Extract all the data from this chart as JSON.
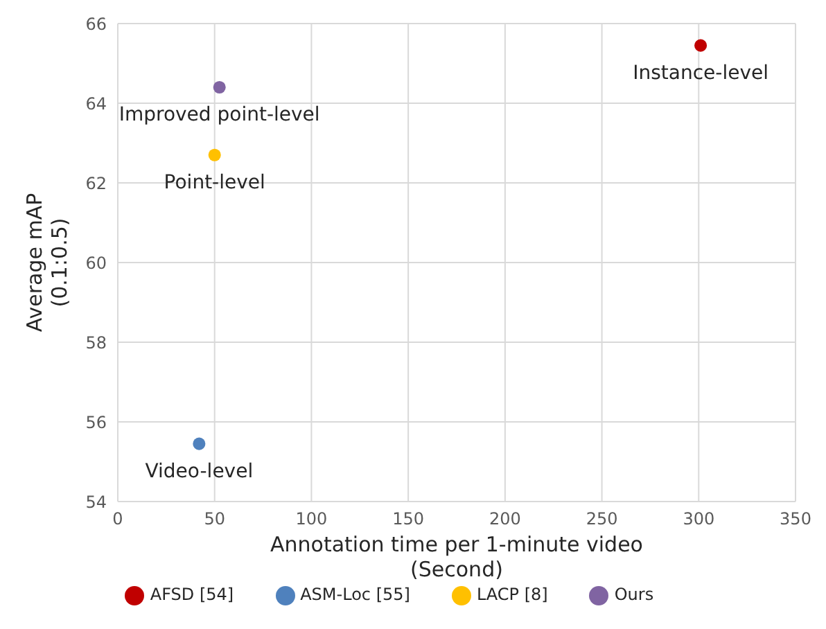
{
  "chart_data": {
    "type": "scatter",
    "xlabel": "Annotation time per 1-minute video\n(Second)",
    "ylabel": "Average mAP\n(0.1:0.5)",
    "xlim": [
      0,
      350
    ],
    "xticks": [
      0,
      50,
      100,
      150,
      200,
      250,
      300,
      350
    ],
    "ylim": [
      54,
      66
    ],
    "yticks": [
      54,
      56,
      58,
      60,
      62,
      64,
      66
    ],
    "grid": true,
    "legend": "bottom",
    "marker": "circle",
    "series": [
      {
        "name": "AFSD [54]",
        "color": "#c00000",
        "x": [
          301
        ],
        "values": [
          65.45
        ]
      },
      {
        "name": "ASM-Loc [55]",
        "color": "#4f81bd",
        "x": [
          42
        ],
        "values": [
          55.45
        ]
      },
      {
        "name": "LACP [8]",
        "color": "#ffc000",
        "x": [
          50
        ],
        "values": [
          62.7
        ]
      },
      {
        "name": "Ours",
        "color": "#8064a2",
        "x": [
          52.5
        ],
        "values": [
          64.4
        ]
      }
    ],
    "annotations": [
      {
        "text": "Instance-level",
        "x": 301,
        "y": 65.45
      },
      {
        "text": "Video-level",
        "x": 42,
        "y": 55.45
      },
      {
        "text": "Point-level",
        "x": 50,
        "y": 62.7
      },
      {
        "text": "Improved point-level",
        "x": 52.5,
        "y": 64.4
      }
    ]
  }
}
